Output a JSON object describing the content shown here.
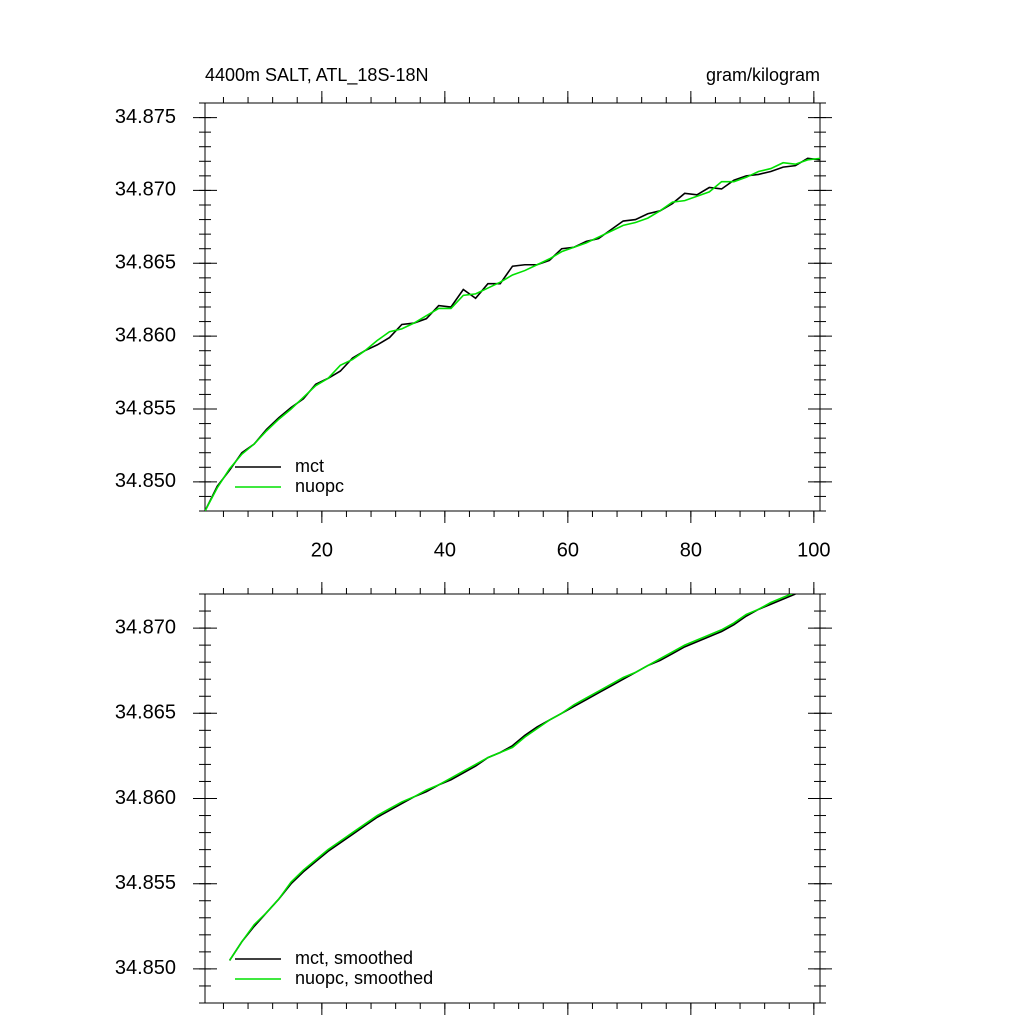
{
  "chart_data": [
    {
      "type": "line",
      "title": "4400m SALT, ATL_18S-18N",
      "subtitle": "gram/kilogram",
      "x": [
        1,
        3,
        5,
        7,
        9,
        11,
        13,
        15,
        17,
        19,
        21,
        23,
        25,
        27,
        29,
        31,
        33,
        35,
        37,
        39,
        41,
        43,
        45,
        47,
        49,
        51,
        53,
        55,
        57,
        59,
        61,
        63,
        65,
        67,
        69,
        71,
        73,
        75,
        77,
        79,
        81,
        83,
        85,
        87,
        89,
        91,
        93,
        95,
        97,
        99,
        101
      ],
      "series": [
        {
          "name": "mct",
          "color": "#000000",
          "values": [
            34.848,
            34.8497,
            34.8508,
            34.852,
            34.8526,
            34.8536,
            34.8544,
            34.8551,
            34.8557,
            34.8567,
            34.8571,
            34.8576,
            34.8585,
            34.859,
            34.8594,
            34.8599,
            34.8608,
            34.8609,
            34.8612,
            34.8621,
            34.862,
            34.8632,
            34.8626,
            34.8636,
            34.8636,
            34.8648,
            34.8649,
            34.8649,
            34.8652,
            34.866,
            34.8661,
            34.8665,
            34.8667,
            34.8673,
            34.8679,
            34.868,
            34.8684,
            34.8686,
            34.8691,
            34.8698,
            34.8697,
            34.8702,
            34.8701,
            34.8707,
            34.871,
            34.8711,
            34.8713,
            34.8716,
            34.8717,
            34.8722,
            34.8721
          ]
        },
        {
          "name": "nuopc",
          "color": "#00e000",
          "values": [
            34.848,
            34.8496,
            34.8509,
            34.8519,
            34.8526,
            34.8535,
            34.8543,
            34.855,
            34.8558,
            34.8566,
            34.8571,
            34.858,
            34.8584,
            34.859,
            34.8597,
            34.8603,
            34.8605,
            34.8609,
            34.8614,
            34.8619,
            34.8619,
            34.8628,
            34.8629,
            34.8633,
            34.8637,
            34.8642,
            34.8645,
            34.8649,
            34.8653,
            34.8658,
            34.8661,
            34.8664,
            34.8668,
            34.8672,
            34.8676,
            34.8678,
            34.8681,
            34.8686,
            34.8692,
            34.8693,
            34.8696,
            34.8699,
            34.8706,
            34.8706,
            34.8709,
            34.8713,
            34.8715,
            34.8719,
            34.8718,
            34.8721,
            34.8722
          ]
        }
      ],
      "xlim": [
        1,
        101
      ],
      "xticks": [
        20,
        40,
        60,
        80,
        100
      ],
      "show_xtick_labels": true,
      "xminor_step": 4,
      "ylim": [
        34.848,
        34.876
      ],
      "yticks": [
        {
          "value": 34.85,
          "label": "34.850"
        },
        34.855,
        {
          "value": 34.86,
          "label": "34.860"
        },
        34.865,
        {
          "value": 34.87,
          "label": "34.870"
        },
        34.875
      ],
      "yminor_step": 0.001,
      "legend": "lower left"
    },
    {
      "type": "line",
      "x": [
        5,
        7,
        9,
        11,
        13,
        15,
        17,
        19,
        21,
        23,
        25,
        27,
        29,
        31,
        33,
        35,
        37,
        39,
        41,
        43,
        45,
        47,
        49,
        51,
        53,
        55,
        57,
        59,
        61,
        63,
        65,
        67,
        69,
        71,
        73,
        75,
        77,
        79,
        81,
        83,
        85,
        87,
        89,
        91,
        93,
        95,
        97
      ],
      "series": [
        {
          "name": "mct, smoothed",
          "color": "#000000",
          "values": [
            34.8505,
            34.8516,
            34.8525,
            34.8533,
            34.8541,
            34.855,
            34.8557,
            34.8563,
            34.8569,
            34.8574,
            34.8579,
            34.8584,
            34.8589,
            34.8593,
            34.8597,
            34.8601,
            34.8604,
            34.8608,
            34.8611,
            34.8615,
            34.8619,
            34.8624,
            34.8627,
            34.8631,
            34.8637,
            34.8642,
            34.8646,
            34.865,
            34.8654,
            34.8658,
            34.8662,
            34.8666,
            34.867,
            34.8674,
            34.8678,
            34.8681,
            34.8685,
            34.8689,
            34.8692,
            34.8695,
            34.8698,
            34.8702,
            34.8707,
            34.8711,
            34.8714,
            34.8717,
            34.872
          ]
        },
        {
          "name": "nuopc, smoothed",
          "color": "#00e000",
          "values": [
            34.8505,
            34.8516,
            34.8526,
            34.8533,
            34.8541,
            34.8551,
            34.8558,
            34.8564,
            34.857,
            34.8575,
            34.858,
            34.8585,
            34.859,
            34.8594,
            34.8598,
            34.8601,
            34.8605,
            34.8608,
            34.8612,
            34.8616,
            34.862,
            34.8624,
            34.8627,
            34.863,
            34.8636,
            34.8641,
            34.8646,
            34.865,
            34.8655,
            34.8659,
            34.8663,
            34.8667,
            34.8671,
            34.8674,
            34.8678,
            34.8682,
            34.8686,
            34.869,
            34.8693,
            34.8696,
            34.8699,
            34.8703,
            34.8708,
            34.8711,
            34.8715,
            34.8718,
            34.8721
          ]
        }
      ],
      "xlim": [
        1,
        101
      ],
      "xticks": [
        20,
        40,
        60,
        80,
        100
      ],
      "show_xtick_labels": false,
      "xminor_step": 4,
      "ylim": [
        34.848,
        34.872
      ],
      "yticks": [
        {
          "value": 34.85,
          "label": "34.850"
        },
        34.855,
        {
          "value": 34.86,
          "label": "34.860"
        },
        34.865,
        {
          "value": 34.87,
          "label": "34.870"
        }
      ],
      "yminor_step": 0.001,
      "legend": "lower left"
    }
  ]
}
